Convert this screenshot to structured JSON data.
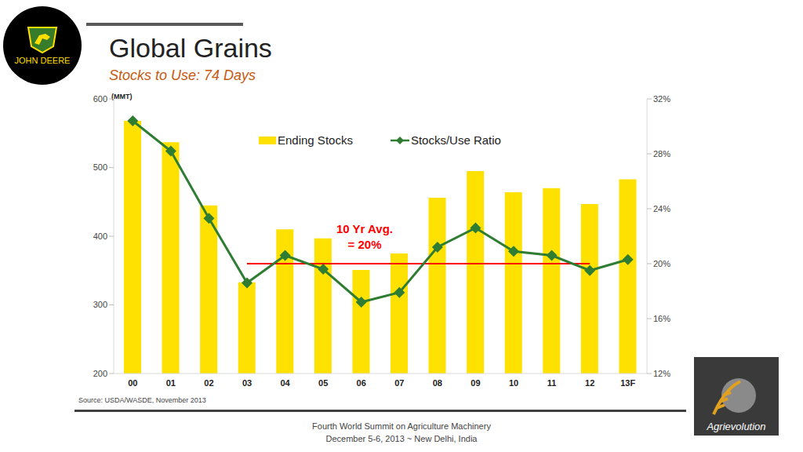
{
  "chart_data": {
    "type": "bar",
    "title": "Global Grains",
    "subtitle": "Stocks to Use: 74 Days",
    "y_label": "(MMT)",
    "categories": [
      "00",
      "01",
      "02",
      "03",
      "04",
      "05",
      "06",
      "07",
      "08",
      "09",
      "10",
      "11",
      "12",
      "13F"
    ],
    "series": [
      {
        "name": "Ending Stocks",
        "type": "bar",
        "color": "#ffe100",
        "values": [
          568,
          537,
          445,
          333,
          410,
          397,
          351,
          375,
          456,
          495,
          464,
          470,
          447,
          483
        ]
      },
      {
        "name": "Stocks/Use Ratio",
        "type": "line",
        "axis": "y2",
        "color": "#2e7d32",
        "marker": "diamond",
        "values": [
          30.4,
          28.2,
          23.3,
          18.6,
          20.6,
          19.6,
          17.2,
          17.9,
          21.2,
          22.6,
          20.9,
          20.6,
          19.5,
          20.3
        ]
      }
    ],
    "ylim": [
      200,
      600
    ],
    "yticks": [
      200,
      300,
      400,
      500,
      600
    ],
    "y2lim": [
      12,
      32
    ],
    "y2ticks": [
      {
        "value": 12,
        "label": "12%"
      },
      {
        "value": 16,
        "label": "16%"
      },
      {
        "value": 20,
        "label": "20%"
      },
      {
        "value": 24,
        "label": "24%"
      },
      {
        "value": 28,
        "label": "28%"
      },
      {
        "value": 32,
        "label": "32%"
      }
    ],
    "grid": false,
    "legend": "top",
    "annotations": [
      {
        "value": 20,
        "axis": "y2",
        "from": "03",
        "to": "12",
        "color": "#ff0000",
        "label": [
          "10 Yr Avg.",
          "= 20%"
        ]
      }
    ]
  },
  "source": "Source: USDA/WASDE, November 2013",
  "footer": [
    "Fourth World Summit on Agriculture Machinery",
    "December 5-6, 2013 ~ New Delhi, India"
  ],
  "logos": [
    "JOHN DEERE",
    "Agrievolution"
  ]
}
